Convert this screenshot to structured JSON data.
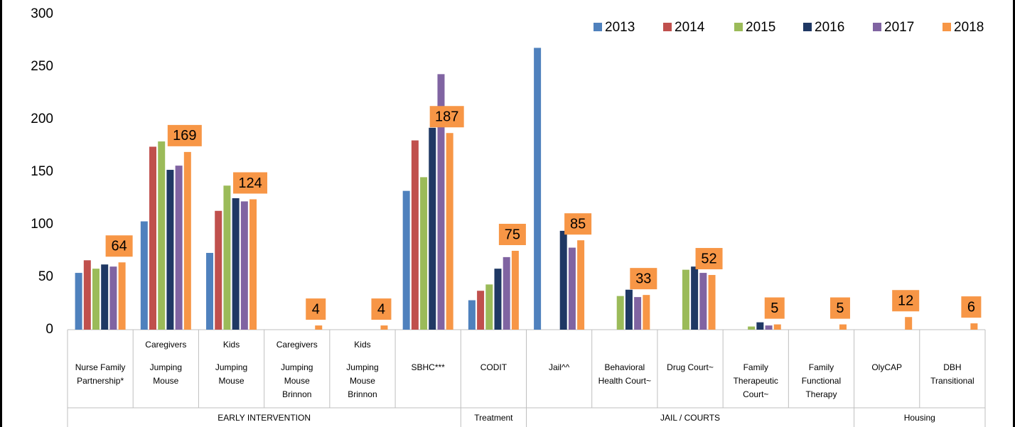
{
  "chart_data": {
    "type": "bar",
    "ylim": [
      0,
      300
    ],
    "yticks": [
      0,
      50,
      100,
      150,
      200,
      250,
      300
    ],
    "legend": "top-right",
    "groups": [
      {
        "name": "EARLY INTERVENTION",
        "categories": [
          {
            "top": null,
            "lines": [
              "Nurse Family",
              "Partnership*"
            ]
          },
          {
            "top": "Caregivers",
            "lines": [
              "Jumping",
              "Mouse"
            ]
          },
          {
            "top": "Kids",
            "lines": [
              "Jumping",
              "Mouse"
            ]
          },
          {
            "top": "Caregivers",
            "lines": [
              "Jumping",
              "Mouse",
              "Brinnon"
            ]
          },
          {
            "top": "Kids",
            "lines": [
              "Jumping",
              "Mouse",
              "Brinnon"
            ]
          },
          {
            "top": null,
            "lines": [
              "SBHC***"
            ]
          }
        ]
      },
      {
        "name": "Treatment",
        "categories": [
          {
            "top": null,
            "lines": [
              "CODIT"
            ]
          }
        ]
      },
      {
        "name": "JAIL / COURTS",
        "categories": [
          {
            "top": null,
            "lines": [
              "Jail^^"
            ]
          },
          {
            "top": null,
            "lines": [
              "Behavioral",
              "Health Court~"
            ]
          },
          {
            "top": null,
            "lines": [
              "Drug Court~"
            ]
          },
          {
            "top": null,
            "lines": [
              "Family",
              "Therapeutic",
              "Court~"
            ]
          },
          {
            "top": null,
            "lines": [
              "Family",
              "Functional",
              "Therapy"
            ]
          }
        ]
      },
      {
        "name": "Housing",
        "categories": [
          {
            "top": null,
            "lines": [
              "OlyCAP"
            ]
          },
          {
            "top": null,
            "lines": [
              "DBH",
              "Transitional"
            ]
          }
        ]
      }
    ],
    "series": [
      {
        "name": "2013",
        "color": "#4f81bd",
        "values": [
          54,
          103,
          73,
          null,
          null,
          132,
          28,
          268,
          null,
          null,
          null,
          null,
          null,
          null
        ]
      },
      {
        "name": "2014",
        "color": "#c0504d",
        "values": [
          66,
          174,
          113,
          null,
          null,
          180,
          37,
          null,
          null,
          null,
          null,
          null,
          null,
          null
        ]
      },
      {
        "name": "2015",
        "color": "#9bbb59",
        "values": [
          58,
          179,
          137,
          null,
          null,
          145,
          43,
          null,
          32,
          57,
          3,
          null,
          null,
          null
        ]
      },
      {
        "name": "2016",
        "color": "#1f3864",
        "values": [
          62,
          152,
          125,
          null,
          null,
          192,
          58,
          94,
          38,
          60,
          7,
          null,
          null,
          null
        ]
      },
      {
        "name": "2017",
        "color": "#8064a2",
        "values": [
          60,
          156,
          122,
          null,
          null,
          243,
          69,
          78,
          31,
          54,
          4,
          null,
          null,
          null
        ]
      },
      {
        "name": "2018",
        "color": "#f79646",
        "values": [
          64,
          169,
          124,
          4,
          4,
          187,
          75,
          85,
          33,
          52,
          5,
          5,
          12,
          6
        ],
        "show_labels": true
      }
    ]
  }
}
